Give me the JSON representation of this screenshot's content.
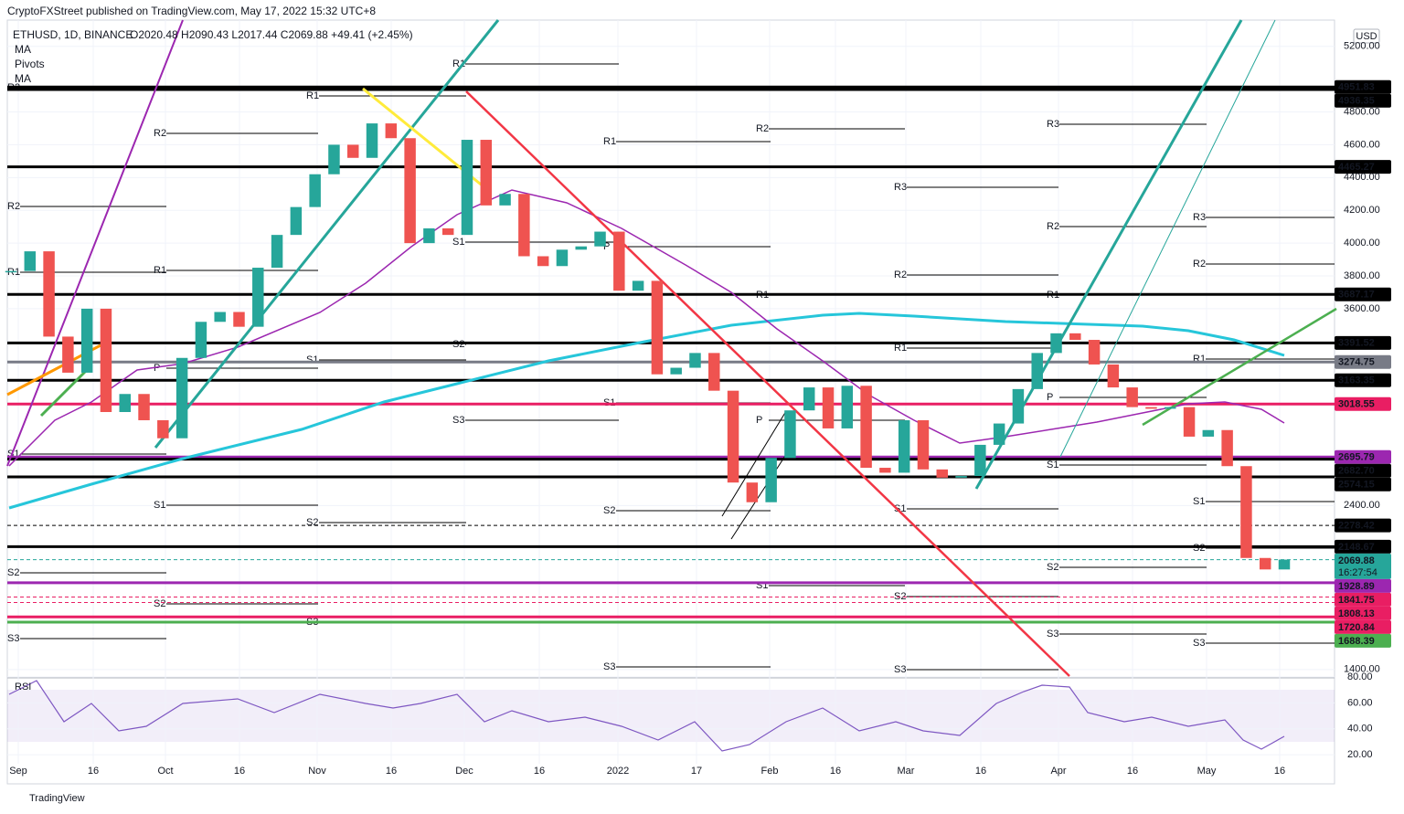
{
  "header": {
    "publisher": "CryptoFXStreet published on TradingView.com, May 17, 2022 15:32 UTC+8",
    "logo": "TradingView"
  },
  "chart_data": {
    "type": "candlestick",
    "symbol": "ETHUSD, 1D, BINANCE",
    "ohlc": "O2020.48 H2090.43 L2017.44 C2069.88 +49.41 (+2.45%)",
    "indicators": [
      "MA",
      "Pivots",
      "MA"
    ],
    "currency": "USD",
    "values": [
      3830,
      3950,
      3430,
      3210,
      3600,
      2970,
      3080,
      2920,
      2810,
      3300,
      3520,
      3580,
      3490,
      3850,
      4050,
      4220,
      4420,
      4600,
      4520,
      4730,
      4640,
      4000,
      4090,
      4050,
      4630,
      4230,
      4300,
      3920,
      3860,
      3960,
      3980,
      4070,
      3710,
      3770,
      3200,
      3240,
      3330,
      3100,
      2540,
      2420,
      2690,
      2980,
      3120,
      2870,
      3130,
      2630,
      2600,
      2920,
      2620,
      2570,
      2580,
      2770,
      2900,
      3110,
      3330,
      3450,
      3410,
      3260,
      3120,
      3000,
      2990,
      3000,
      2820,
      2860,
      2640,
      2080,
      2010,
      2070
    ],
    "up_color": "#26a69a",
    "down_color": "#ef5350",
    "ylim": [
      1360,
      5360
    ],
    "yticks": [
      {
        "value": 5200,
        "label": "5200.00"
      },
      {
        "value": 4800,
        "label": "4800.00"
      },
      {
        "value": 4600,
        "label": "4600.00"
      },
      {
        "value": 4400,
        "label": "4400.00"
      },
      {
        "value": 4200,
        "label": "4200.00"
      },
      {
        "value": 4000,
        "label": "4000.00"
      },
      {
        "value": 3800,
        "label": "3800.00"
      },
      {
        "value": 3600,
        "label": "3600.00"
      },
      {
        "value": 2400,
        "label": "2400.00"
      },
      {
        "value": 1400,
        "label": "1400.00"
      }
    ],
    "grid": true,
    "xtick_labels": [
      "Sep",
      "16",
      "Oct",
      "16",
      "Nov",
      "16",
      "Dec",
      "16",
      "2022",
      "17",
      "Feb",
      "16",
      "Mar",
      "16",
      "Apr",
      "16",
      "May",
      "16"
    ],
    "levels": [
      {
        "value": 4951.83,
        "label": "4951.83",
        "color": "#000000"
      },
      {
        "value": 4936.35,
        "label": "4936.35",
        "color": "#000000"
      },
      {
        "value": 4465.27,
        "label": "4465.27",
        "color": "#000000"
      },
      {
        "value": 3687.17,
        "label": "3687.17",
        "color": "#000000"
      },
      {
        "value": 3391.52,
        "label": "3391.52",
        "color": "#000000"
      },
      {
        "value": 3274.75,
        "label": "3274.75",
        "color": "#787b86"
      },
      {
        "value": 3163.35,
        "label": "3163.35",
        "color": "#000000"
      },
      {
        "value": 3018.55,
        "label": "3018.55",
        "color": "#e91e63"
      },
      {
        "value": 2695.79,
        "label": "2695.79",
        "color": "#9c27b0"
      },
      {
        "value": 2682.7,
        "label": "2682.70",
        "color": "#000000"
      },
      {
        "value": 2574.15,
        "label": "2574.15",
        "color": "#000000"
      },
      {
        "value": 2278.42,
        "label": "2278.42",
        "color": "#000000",
        "dashed": true
      },
      {
        "value": 2148.67,
        "label": "2148.67",
        "color": "#000000"
      },
      {
        "value": 2069.88,
        "label": "2069.88",
        "color": "#26a69a",
        "dashed": true,
        "sublabel": "16:27:54"
      },
      {
        "value": 1928.89,
        "label": "1928.89",
        "color": "#9c27b0"
      },
      {
        "value": 1841.75,
        "label": "1841.75",
        "color": "#e91e63",
        "dashed": true
      },
      {
        "value": 1808.13,
        "label": "1808.13",
        "color": "#e91e63",
        "dashed": true
      },
      {
        "value": 1720.84,
        "label": "1720.84",
        "color": "#e91e63"
      },
      {
        "value": 1688.39,
        "label": "1688.39",
        "color": "#4caf50"
      }
    ],
    "pivots": [
      "R3",
      "R2",
      "R1",
      "S1",
      "S2",
      "S3",
      "R2",
      "R1",
      "P",
      "S1",
      "S2",
      "R1",
      "S1",
      "S2",
      "S2",
      "S3",
      "R1",
      "S1",
      "S3",
      "R1",
      "P",
      "S1",
      "S2",
      "S3",
      "R2",
      "R1",
      "P",
      "S1",
      "R3",
      "R2",
      "R1",
      "S1",
      "S2",
      "S3",
      "R3",
      "R2",
      "R1",
      "P",
      "S1",
      "S2",
      "S3",
      "R3",
      "R2",
      "R1",
      "S1",
      "S2",
      "S3"
    ],
    "rsi": {
      "label": "RSI",
      "ylim": [
        13,
        80
      ],
      "yticks": [
        {
          "value": 80,
          "label": "80.00"
        },
        {
          "value": 60,
          "label": "60.00"
        },
        {
          "value": 40,
          "label": "40.00"
        },
        {
          "value": 20,
          "label": "20.00"
        }
      ]
    }
  }
}
